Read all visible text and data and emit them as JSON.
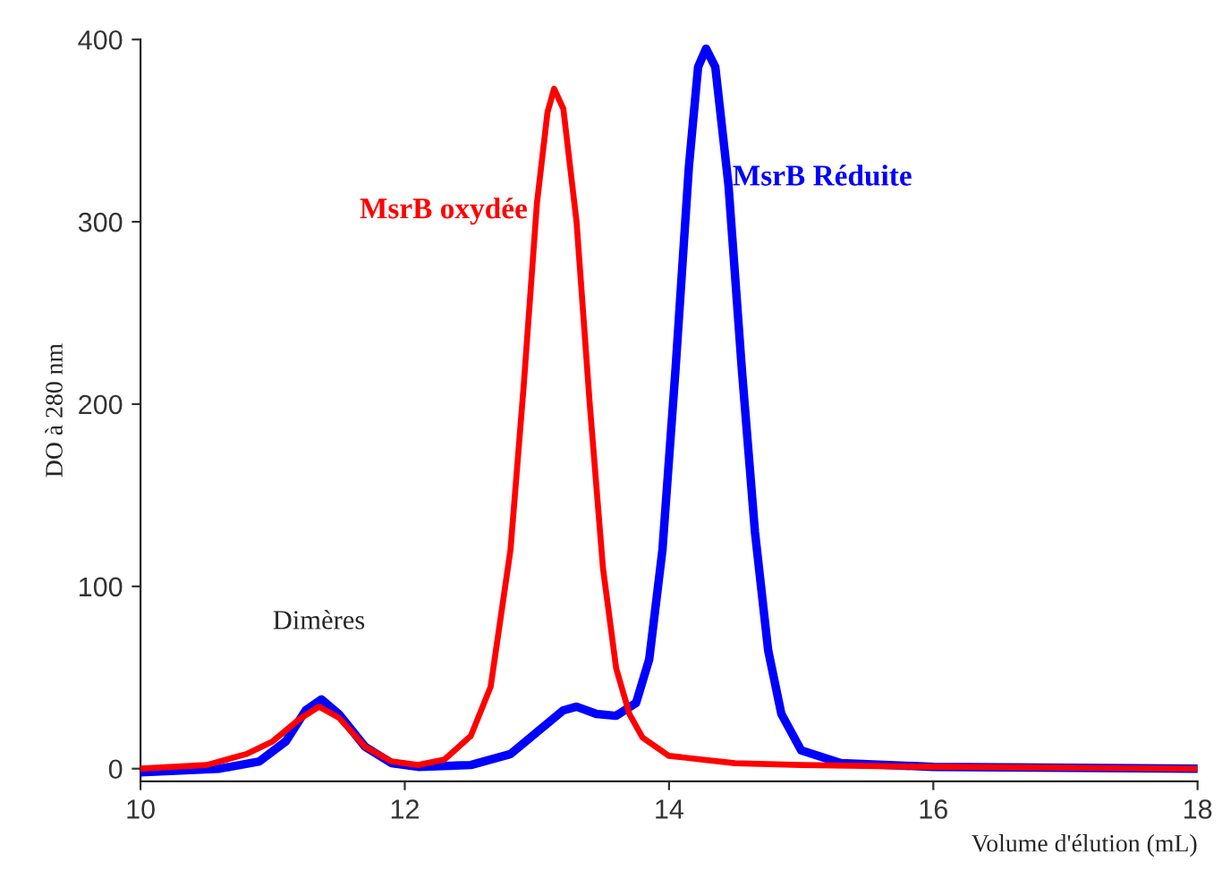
{
  "chart_data": {
    "type": "line",
    "xlabel": "Volume d'élution (mL)",
    "ylabel": "DO à 280 nm",
    "xlim": [
      10,
      18
    ],
    "xticks": [
      10,
      12,
      14,
      16,
      18
    ],
    "ylim": [
      -7,
      400
    ],
    "yticks": [
      0,
      100,
      200,
      300,
      400
    ],
    "grid": false,
    "legend": false,
    "marker": "none",
    "line_style": "solid",
    "annotations": [
      {
        "text": "Dimères",
        "x": 11.35,
        "y": 38
      }
    ],
    "series": [
      {
        "name": "MsrB oxydée",
        "color": "#ff0000",
        "x": [
          10,
          10.5,
          10.8,
          11.0,
          11.2,
          11.35,
          11.5,
          11.7,
          11.9,
          12.1,
          12.3,
          12.5,
          12.65,
          12.8,
          12.9,
          13.0,
          13.08,
          13.13,
          13.2,
          13.3,
          13.4,
          13.5,
          13.6,
          13.7,
          13.8,
          14.0,
          14.5,
          15,
          16,
          18
        ],
        "values": [
          0,
          2,
          8,
          15,
          27,
          34,
          28,
          12,
          4,
          2,
          5,
          18,
          45,
          120,
          210,
          310,
          360,
          373,
          362,
          300,
          200,
          110,
          55,
          30,
          17,
          7,
          3,
          2,
          1,
          0
        ]
      },
      {
        "name": "MsrB Réduite",
        "color": "#0000ff",
        "x": [
          10,
          10.6,
          10.9,
          11.1,
          11.25,
          11.37,
          11.5,
          11.7,
          11.9,
          12.1,
          12.5,
          12.8,
          13.0,
          13.2,
          13.3,
          13.45,
          13.6,
          13.75,
          13.85,
          13.95,
          14.05,
          14.15,
          14.22,
          14.28,
          14.35,
          14.45,
          14.55,
          14.65,
          14.75,
          14.85,
          15.0,
          15.3,
          16,
          18
        ],
        "values": [
          -2,
          0,
          4,
          15,
          32,
          38,
          30,
          12,
          3,
          1,
          2,
          8,
          20,
          32,
          34,
          30,
          29,
          36,
          60,
          120,
          220,
          330,
          385,
          395,
          385,
          320,
          220,
          130,
          65,
          30,
          10,
          3,
          1,
          0
        ]
      }
    ]
  }
}
